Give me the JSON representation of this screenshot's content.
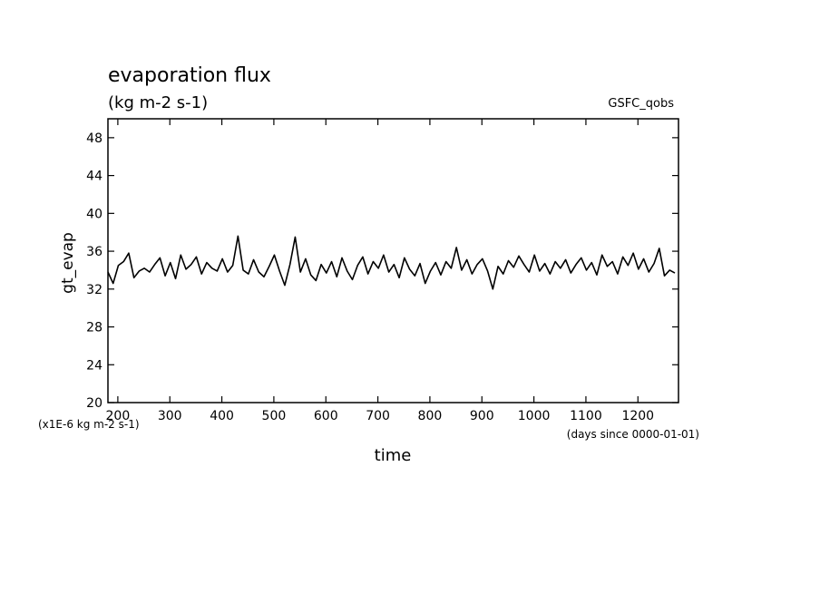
{
  "chart_data": {
    "type": "line",
    "title": "evaporation flux",
    "subtitle": "(kg m-2 s-1)",
    "annotation": "GSFC_qobs",
    "ylabel": "gt_evap",
    "xlabel": "time",
    "y_units": "(x1E-6 kg m-2 s-1)",
    "x_units": "(days since 0000-01-01)",
    "xlim": [
      181,
      1278
    ],
    "ylim": [
      20,
      50
    ],
    "xticks": [
      200,
      300,
      400,
      500,
      600,
      700,
      800,
      900,
      1000,
      1100,
      1200
    ],
    "yticks": [
      20,
      24,
      28,
      32,
      36,
      40,
      44,
      48
    ],
    "x": [
      181,
      191,
      201,
      211,
      221,
      231,
      241,
      251,
      261,
      271,
      281,
      291,
      301,
      311,
      321,
      331,
      341,
      351,
      361,
      371,
      381,
      391,
      401,
      411,
      421,
      431,
      441,
      451,
      461,
      471,
      481,
      491,
      501,
      511,
      521,
      531,
      541,
      551,
      561,
      571,
      581,
      591,
      601,
      611,
      621,
      631,
      641,
      651,
      661,
      671,
      681,
      691,
      701,
      711,
      721,
      731,
      741,
      751,
      761,
      771,
      781,
      791,
      801,
      811,
      821,
      831,
      841,
      851,
      861,
      871,
      881,
      891,
      901,
      911,
      921,
      931,
      941,
      951,
      961,
      971,
      981,
      991,
      1001,
      1011,
      1021,
      1031,
      1041,
      1051,
      1061,
      1071,
      1081,
      1091,
      1101,
      1111,
      1121,
      1131,
      1141,
      1151,
      1161,
      1171,
      1181,
      1191,
      1201,
      1211,
      1221,
      1231,
      1241,
      1251,
      1261,
      1271
    ],
    "series": [
      {
        "name": "gt_evap",
        "color": "#000000",
        "values": [
          33.8,
          32.6,
          34.5,
          34.9,
          35.8,
          33.2,
          33.9,
          34.2,
          33.8,
          34.6,
          35.3,
          33.4,
          34.8,
          33.1,
          35.6,
          34.1,
          34.6,
          35.4,
          33.6,
          34.8,
          34.2,
          33.9,
          35.2,
          33.8,
          34.5,
          37.6,
          34.0,
          33.6,
          35.1,
          33.8,
          33.3,
          34.4,
          35.6,
          33.9,
          32.4,
          34.6,
          37.5,
          33.8,
          35.2,
          33.5,
          32.9,
          34.6,
          33.7,
          34.9,
          33.3,
          35.3,
          33.9,
          33.0,
          34.5,
          35.4,
          33.6,
          34.9,
          34.2,
          35.6,
          33.8,
          34.6,
          33.2,
          35.3,
          34.1,
          33.4,
          34.7,
          32.6,
          33.9,
          34.8,
          33.5,
          34.9,
          34.2,
          36.4,
          34.0,
          35.1,
          33.6,
          34.6,
          35.2,
          33.9,
          32.0,
          34.4,
          33.6,
          35.0,
          34.3,
          35.5,
          34.6,
          33.8,
          35.6,
          33.9,
          34.7,
          33.6,
          34.9,
          34.2,
          35.1,
          33.7,
          34.6,
          35.3,
          34.0,
          34.8,
          33.5,
          35.6,
          34.4,
          34.9,
          33.6,
          35.4,
          34.5,
          35.8,
          34.1,
          35.2,
          33.8,
          34.7,
          36.3,
          33.4,
          34.0,
          33.7
        ]
      }
    ]
  }
}
